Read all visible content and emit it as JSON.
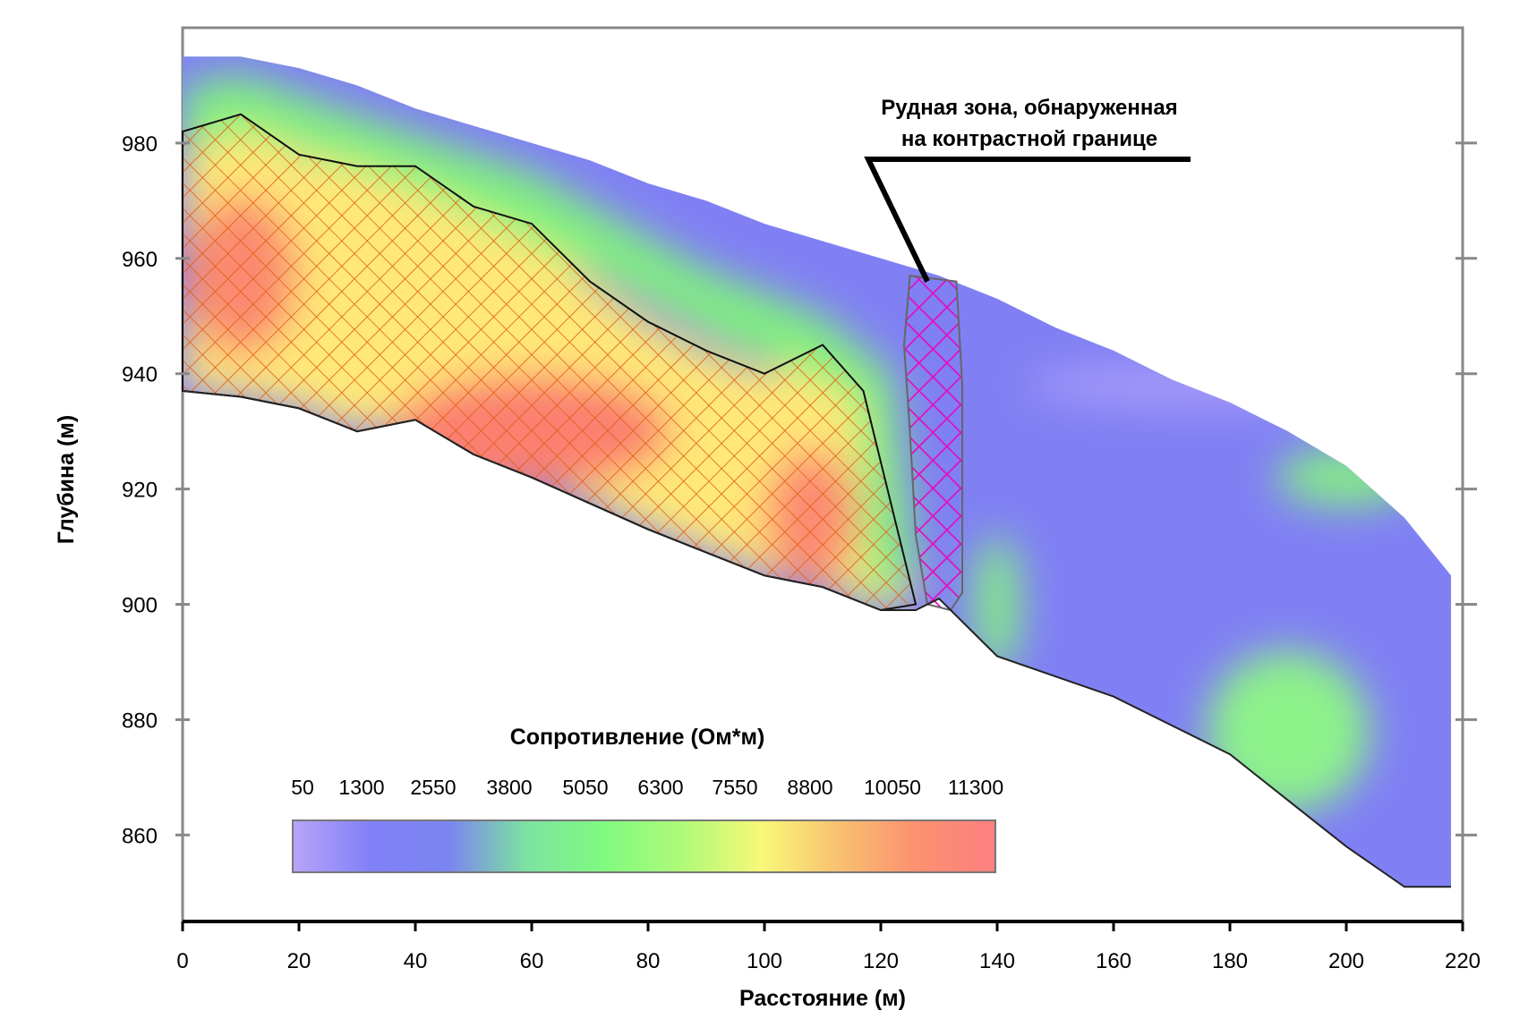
{
  "chart_data": {
    "type": "heatmap",
    "title": "",
    "xlabel": "Расстояние (м)",
    "ylabel": "Глубина (м)",
    "xlim": [
      0,
      220
    ],
    "ylim": [
      845,
      1000
    ],
    "x_ticks": [
      0,
      20,
      40,
      60,
      80,
      100,
      120,
      140,
      160,
      180,
      200,
      220
    ],
    "y_ticks": [
      860,
      880,
      900,
      920,
      940,
      960,
      980
    ],
    "colorbar": {
      "title": "Сопротивление (Ом*м)",
      "labels": [
        "50",
        "1300",
        "2550",
        "3800",
        "5050",
        "6300",
        "7550",
        "8800",
        "10050",
        "11300"
      ],
      "colors": [
        "#b9a4f8",
        "#8080f8",
        "#7b85f0",
        "#7de3a0",
        "#80fa80",
        "#b0fa78",
        "#f8f878",
        "#f8c070",
        "#fc9070",
        "#fc8080"
      ]
    },
    "section_top_surface": [
      [
        0,
        995
      ],
      [
        10,
        995
      ],
      [
        20,
        993
      ],
      [
        30,
        990
      ],
      [
        40,
        986
      ],
      [
        50,
        983
      ],
      [
        60,
        980
      ],
      [
        70,
        977
      ],
      [
        80,
        973
      ],
      [
        90,
        970
      ],
      [
        100,
        966
      ],
      [
        110,
        963
      ],
      [
        120,
        960
      ],
      [
        130,
        957
      ],
      [
        140,
        953
      ],
      [
        150,
        948
      ],
      [
        160,
        944
      ],
      [
        170,
        939
      ],
      [
        180,
        935
      ],
      [
        190,
        930
      ],
      [
        200,
        924
      ],
      [
        210,
        915
      ],
      [
        218,
        905
      ]
    ],
    "section_bottom_surface": [
      [
        0,
        937
      ],
      [
        10,
        936
      ],
      [
        20,
        934
      ],
      [
        30,
        930
      ],
      [
        40,
        932
      ],
      [
        50,
        926
      ],
      [
        60,
        922
      ],
      [
        80,
        913
      ],
      [
        100,
        905
      ],
      [
        110,
        903
      ],
      [
        120,
        899
      ],
      [
        126,
        899
      ],
      [
        130,
        901
      ],
      [
        140,
        891
      ],
      [
        160,
        884
      ],
      [
        180,
        874
      ],
      [
        190,
        866
      ],
      [
        200,
        858
      ],
      [
        210,
        851
      ],
      [
        218,
        851
      ]
    ],
    "high_resistivity_zone": {
      "fill": "hatched",
      "outline": [
        [
          0,
          982
        ],
        [
          10,
          985
        ],
        [
          20,
          978
        ],
        [
          30,
          976
        ],
        [
          40,
          976
        ],
        [
          50,
          969
        ],
        [
          60,
          966
        ],
        [
          70,
          956
        ],
        [
          80,
          949
        ],
        [
          90,
          944
        ],
        [
          100,
          940
        ],
        [
          110,
          945
        ],
        [
          117,
          937
        ],
        [
          126,
          900
        ],
        [
          120,
          899
        ],
        [
          110,
          903
        ],
        [
          100,
          905
        ],
        [
          80,
          913
        ],
        [
          60,
          922
        ],
        [
          50,
          926
        ],
        [
          40,
          932
        ],
        [
          30,
          930
        ],
        [
          20,
          934
        ],
        [
          10,
          936
        ],
        [
          0,
          937
        ]
      ]
    },
    "ore_zone": {
      "fill": "hatched",
      "outline": [
        [
          125,
          957
        ],
        [
          133,
          956
        ],
        [
          134,
          938
        ],
        [
          134,
          902
        ],
        [
          132,
          899
        ],
        [
          128,
          900
        ],
        [
          126,
          912
        ],
        [
          125,
          930
        ],
        [
          124,
          945
        ]
      ]
    },
    "annotations": [
      {
        "text_lines": [
          "Рудная зона, обнаруженная",
          "на контрастной границе"
        ],
        "points_to": [
          128,
          956
        ]
      }
    ]
  }
}
